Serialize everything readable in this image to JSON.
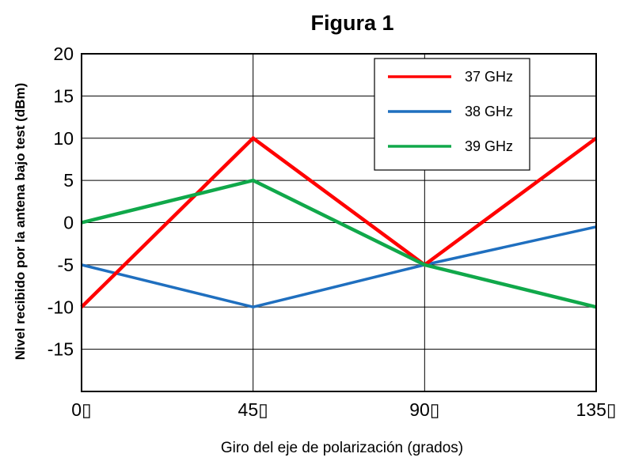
{
  "chart_data": {
    "type": "line",
    "title": "Figura 1",
    "xlabel": "Giro del eje de polarización (grados)",
    "ylabel": "Nivel recibido por la antena bajo test (dBm)",
    "x": [
      0,
      45,
      90,
      135
    ],
    "x_tick_labels": [
      "0▯",
      "45▯",
      "90▯",
      "135▯"
    ],
    "y_ticks": [
      20,
      15,
      10,
      5,
      0,
      -5,
      -10,
      -15
    ],
    "y_tick_labels": [
      "20",
      "15",
      "10",
      "5",
      "0",
      "-5",
      "-10",
      "-15"
    ],
    "ylim": [
      -20,
      20
    ],
    "xlim": [
      0,
      135
    ],
    "grid": true,
    "legend_position": "top-right",
    "series": [
      {
        "name": "37 GHz",
        "color": "#ff0000",
        "values": [
          -10,
          10,
          -5,
          10
        ]
      },
      {
        "name": "38 GHz",
        "color": "#1f6fbf",
        "values": [
          -5,
          -10,
          -5,
          -0.5
        ]
      },
      {
        "name": "39 GHz",
        "color": "#10a84a",
        "values": [
          0,
          5,
          -5,
          -10
        ]
      }
    ]
  }
}
